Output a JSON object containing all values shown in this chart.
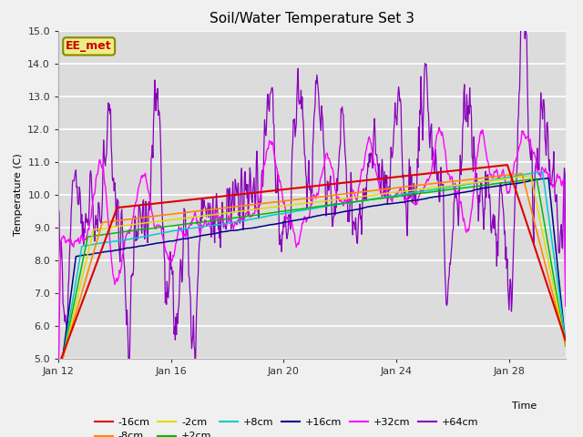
{
  "title": "Soil/Water Temperature Set 3",
  "xlabel": "Time",
  "ylabel": "Temperature (C)",
  "ylim": [
    5.0,
    15.0
  ],
  "yticks": [
    5.0,
    6.0,
    7.0,
    8.0,
    9.0,
    10.0,
    11.0,
    12.0,
    13.0,
    14.0,
    15.0
  ],
  "xtick_labels": [
    "Jan 12",
    "Jan 16",
    "Jan 20",
    "Jan 24",
    "Jan 28"
  ],
  "xtick_positions": [
    0,
    4,
    8,
    12,
    16
  ],
  "xlim": [
    0,
    18
  ],
  "bg_color": "#e8e8e8",
  "plot_bg_color": "#dcdcdc",
  "grid_color": "#ffffff",
  "series_colors": {
    "-16cm": "#dd0000",
    "-8cm": "#ff8800",
    "-2cm": "#dddd00",
    "+2cm": "#00bb00",
    "+8cm": "#00cccc",
    "+16cm": "#000088",
    "+32cm": "#ff00ff",
    "+64cm": "#8800bb"
  },
  "legend_label": "EE_met",
  "legend_box_facecolor": "#eeee88",
  "legend_box_edgecolor": "#888800",
  "legend_text_color": "#cc0000"
}
